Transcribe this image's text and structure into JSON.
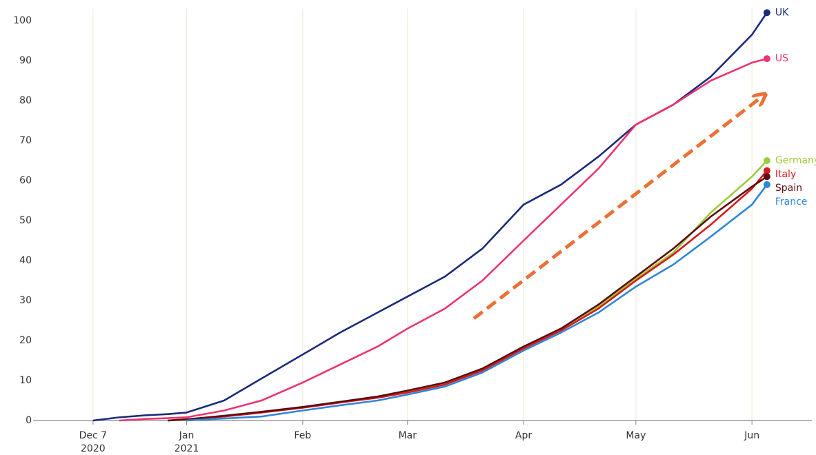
{
  "chart_data": {
    "type": "line",
    "x": [
      "2020-12-07",
      "2020-12-14",
      "2020-12-21",
      "2020-12-27",
      "2021-01-01",
      "2021-01-11",
      "2021-01-21",
      "2021-02-01",
      "2021-02-11",
      "2021-02-21",
      "2021-03-01",
      "2021-03-11",
      "2021-03-21",
      "2021-04-01",
      "2021-04-11",
      "2021-04-21",
      "2021-05-01",
      "2021-05-11",
      "2021-05-21",
      "2021-06-01",
      "2021-06-05"
    ],
    "series": [
      {
        "name": "UK",
        "color": "#1b2a7b",
        "values": [
          0,
          0.8,
          1.3,
          1.6,
          2,
          5,
          10.5,
          16.5,
          22,
          27,
          31,
          36,
          43,
          54,
          59,
          66,
          74,
          79,
          86,
          96.5,
          102
        ]
      },
      {
        "name": "US",
        "color": "#ec3470",
        "values": [
          null,
          0,
          0.4,
          0.6,
          0.8,
          2.5,
          5,
          9.5,
          14,
          18.5,
          23,
          28,
          35,
          45,
          54,
          63,
          74,
          79,
          85,
          89.5,
          90.5
        ]
      },
      {
        "name": "Germany",
        "color": "#9ccc3a",
        "values": [
          null,
          null,
          null,
          0,
          0.3,
          1,
          2,
          3.3,
          4.6,
          5.8,
          7.2,
          9.2,
          12.8,
          18.2,
          23,
          28.5,
          35.5,
          42,
          52,
          61,
          65
        ]
      },
      {
        "name": "Italy",
        "color": "#d7191c",
        "values": [
          null,
          null,
          null,
          0,
          0.3,
          1,
          2,
          3.2,
          4.5,
          5.7,
          7,
          9,
          12.5,
          18,
          22.5,
          28,
          35,
          41.5,
          49,
          58,
          62.5
        ]
      },
      {
        "name": "Spain",
        "color": "#5b0d12",
        "values": [
          null,
          null,
          null,
          0,
          0.3,
          1.2,
          2.2,
          3.4,
          4.7,
          6,
          7.5,
          9.5,
          13,
          18.5,
          23,
          29,
          36,
          43,
          51,
          58.5,
          61
        ]
      },
      {
        "name": "France",
        "color": "#2f86d8",
        "values": [
          null,
          null,
          null,
          null,
          0,
          0.5,
          1,
          2.5,
          3.8,
          5,
          6.5,
          8.5,
          12,
          17.5,
          22,
          27,
          33.5,
          39,
          46,
          54,
          59
        ]
      }
    ],
    "xlim": [
      "2020-11-21",
      "2021-06-17"
    ],
    "xticks": [
      {
        "value": "2020-12-07",
        "label": "Dec 7\n2020"
      },
      {
        "value": "2021-01-01",
        "label": "Jan\n2021"
      },
      {
        "value": "2021-02-01",
        "label": "Feb"
      },
      {
        "value": "2021-03-01",
        "label": "Mar"
      },
      {
        "value": "2021-04-01",
        "label": "Apr"
      },
      {
        "value": "2021-05-01",
        "label": "May"
      },
      {
        "value": "2021-06-01",
        "label": "Jun"
      }
    ],
    "ylim": [
      0,
      103
    ],
    "yticks": [
      0,
      10,
      20,
      30,
      40,
      50,
      60,
      70,
      80,
      90,
      100
    ],
    "grid": true
  }
}
